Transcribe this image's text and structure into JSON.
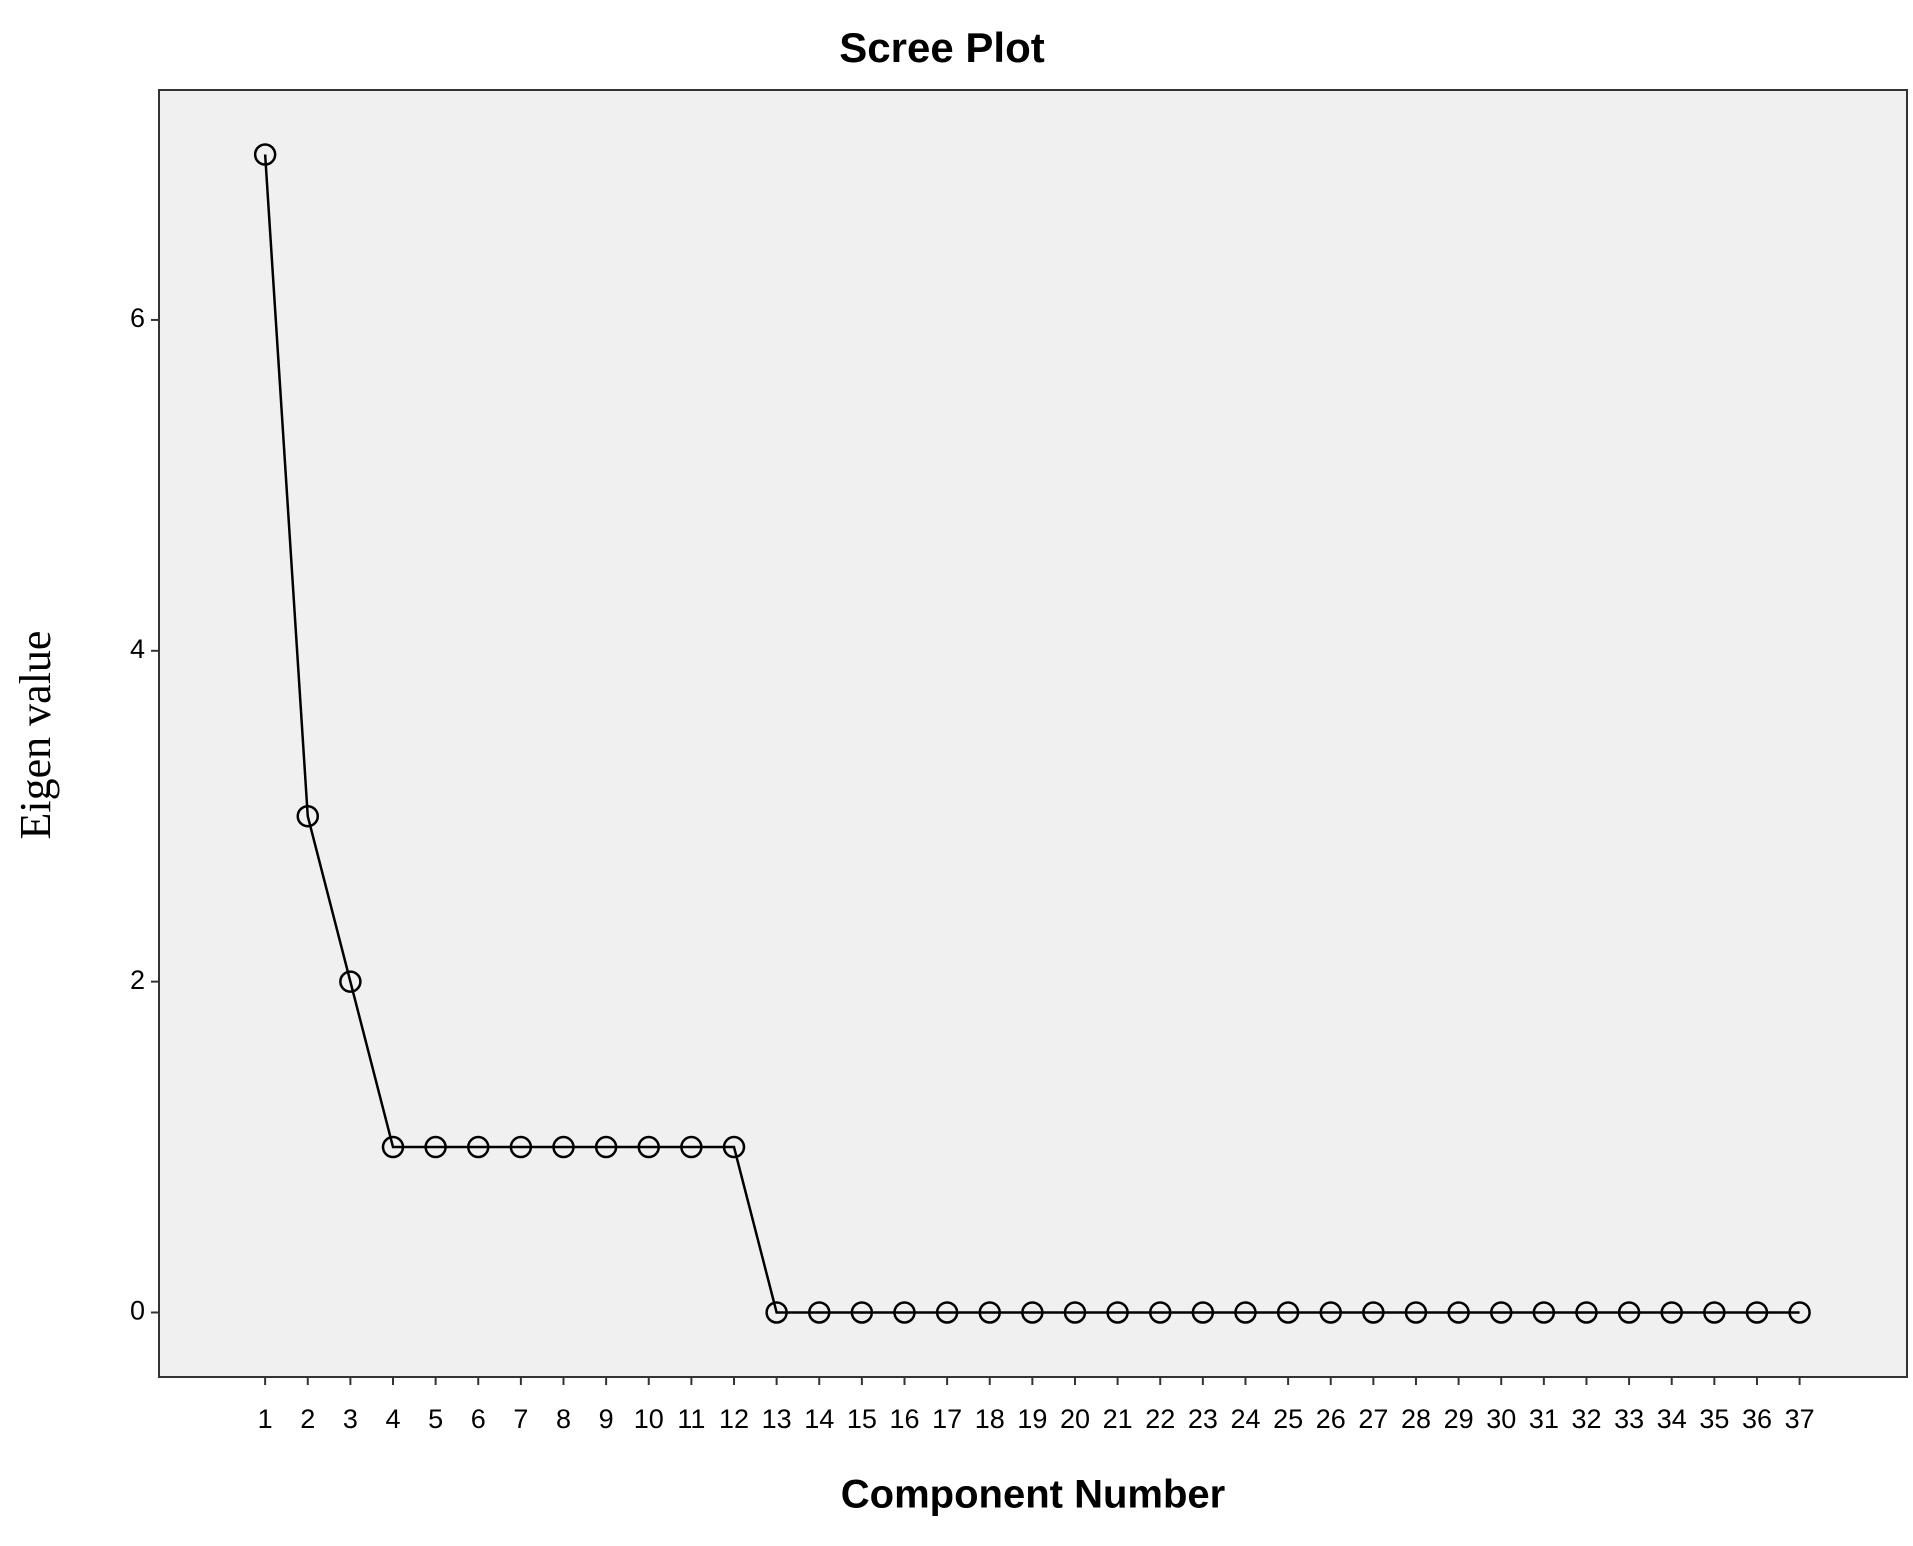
{
  "chart_data": {
    "type": "line",
    "title": "Scree Plot",
    "x_label": "Component Number",
    "y_label": "Eigen value",
    "x": [
      1,
      2,
      3,
      4,
      5,
      6,
      7,
      8,
      9,
      10,
      11,
      12,
      13,
      14,
      15,
      16,
      17,
      18,
      19,
      20,
      21,
      22,
      23,
      24,
      25,
      26,
      27,
      28,
      29,
      30,
      31,
      32,
      33,
      34,
      35,
      36,
      37
    ],
    "series": [
      {
        "color": "#000000",
        "values": [
          7,
          3,
          2,
          1,
          1,
          1,
          1,
          1,
          1,
          1,
          1,
          1,
          0,
          0,
          0,
          0,
          0,
          0,
          0,
          0,
          0,
          0,
          0,
          0,
          0,
          0,
          0,
          0,
          0,
          0,
          0,
          0,
          0,
          0,
          0,
          0,
          0
        ]
      }
    ],
    "xlim": [
      -1.49,
      39.52
    ],
    "xticks": [
      1,
      2,
      3,
      4,
      5,
      6,
      7,
      8,
      9,
      10,
      11,
      12,
      13,
      14,
      15,
      16,
      17,
      18,
      19,
      20,
      21,
      22,
      23,
      24,
      25,
      26,
      27,
      28,
      29,
      30,
      31,
      32,
      33,
      34,
      35,
      36,
      37
    ],
    "ylim": [
      -0.39,
      7.39
    ],
    "yticks": [
      0,
      2,
      4,
      6
    ],
    "grid": false
  }
}
